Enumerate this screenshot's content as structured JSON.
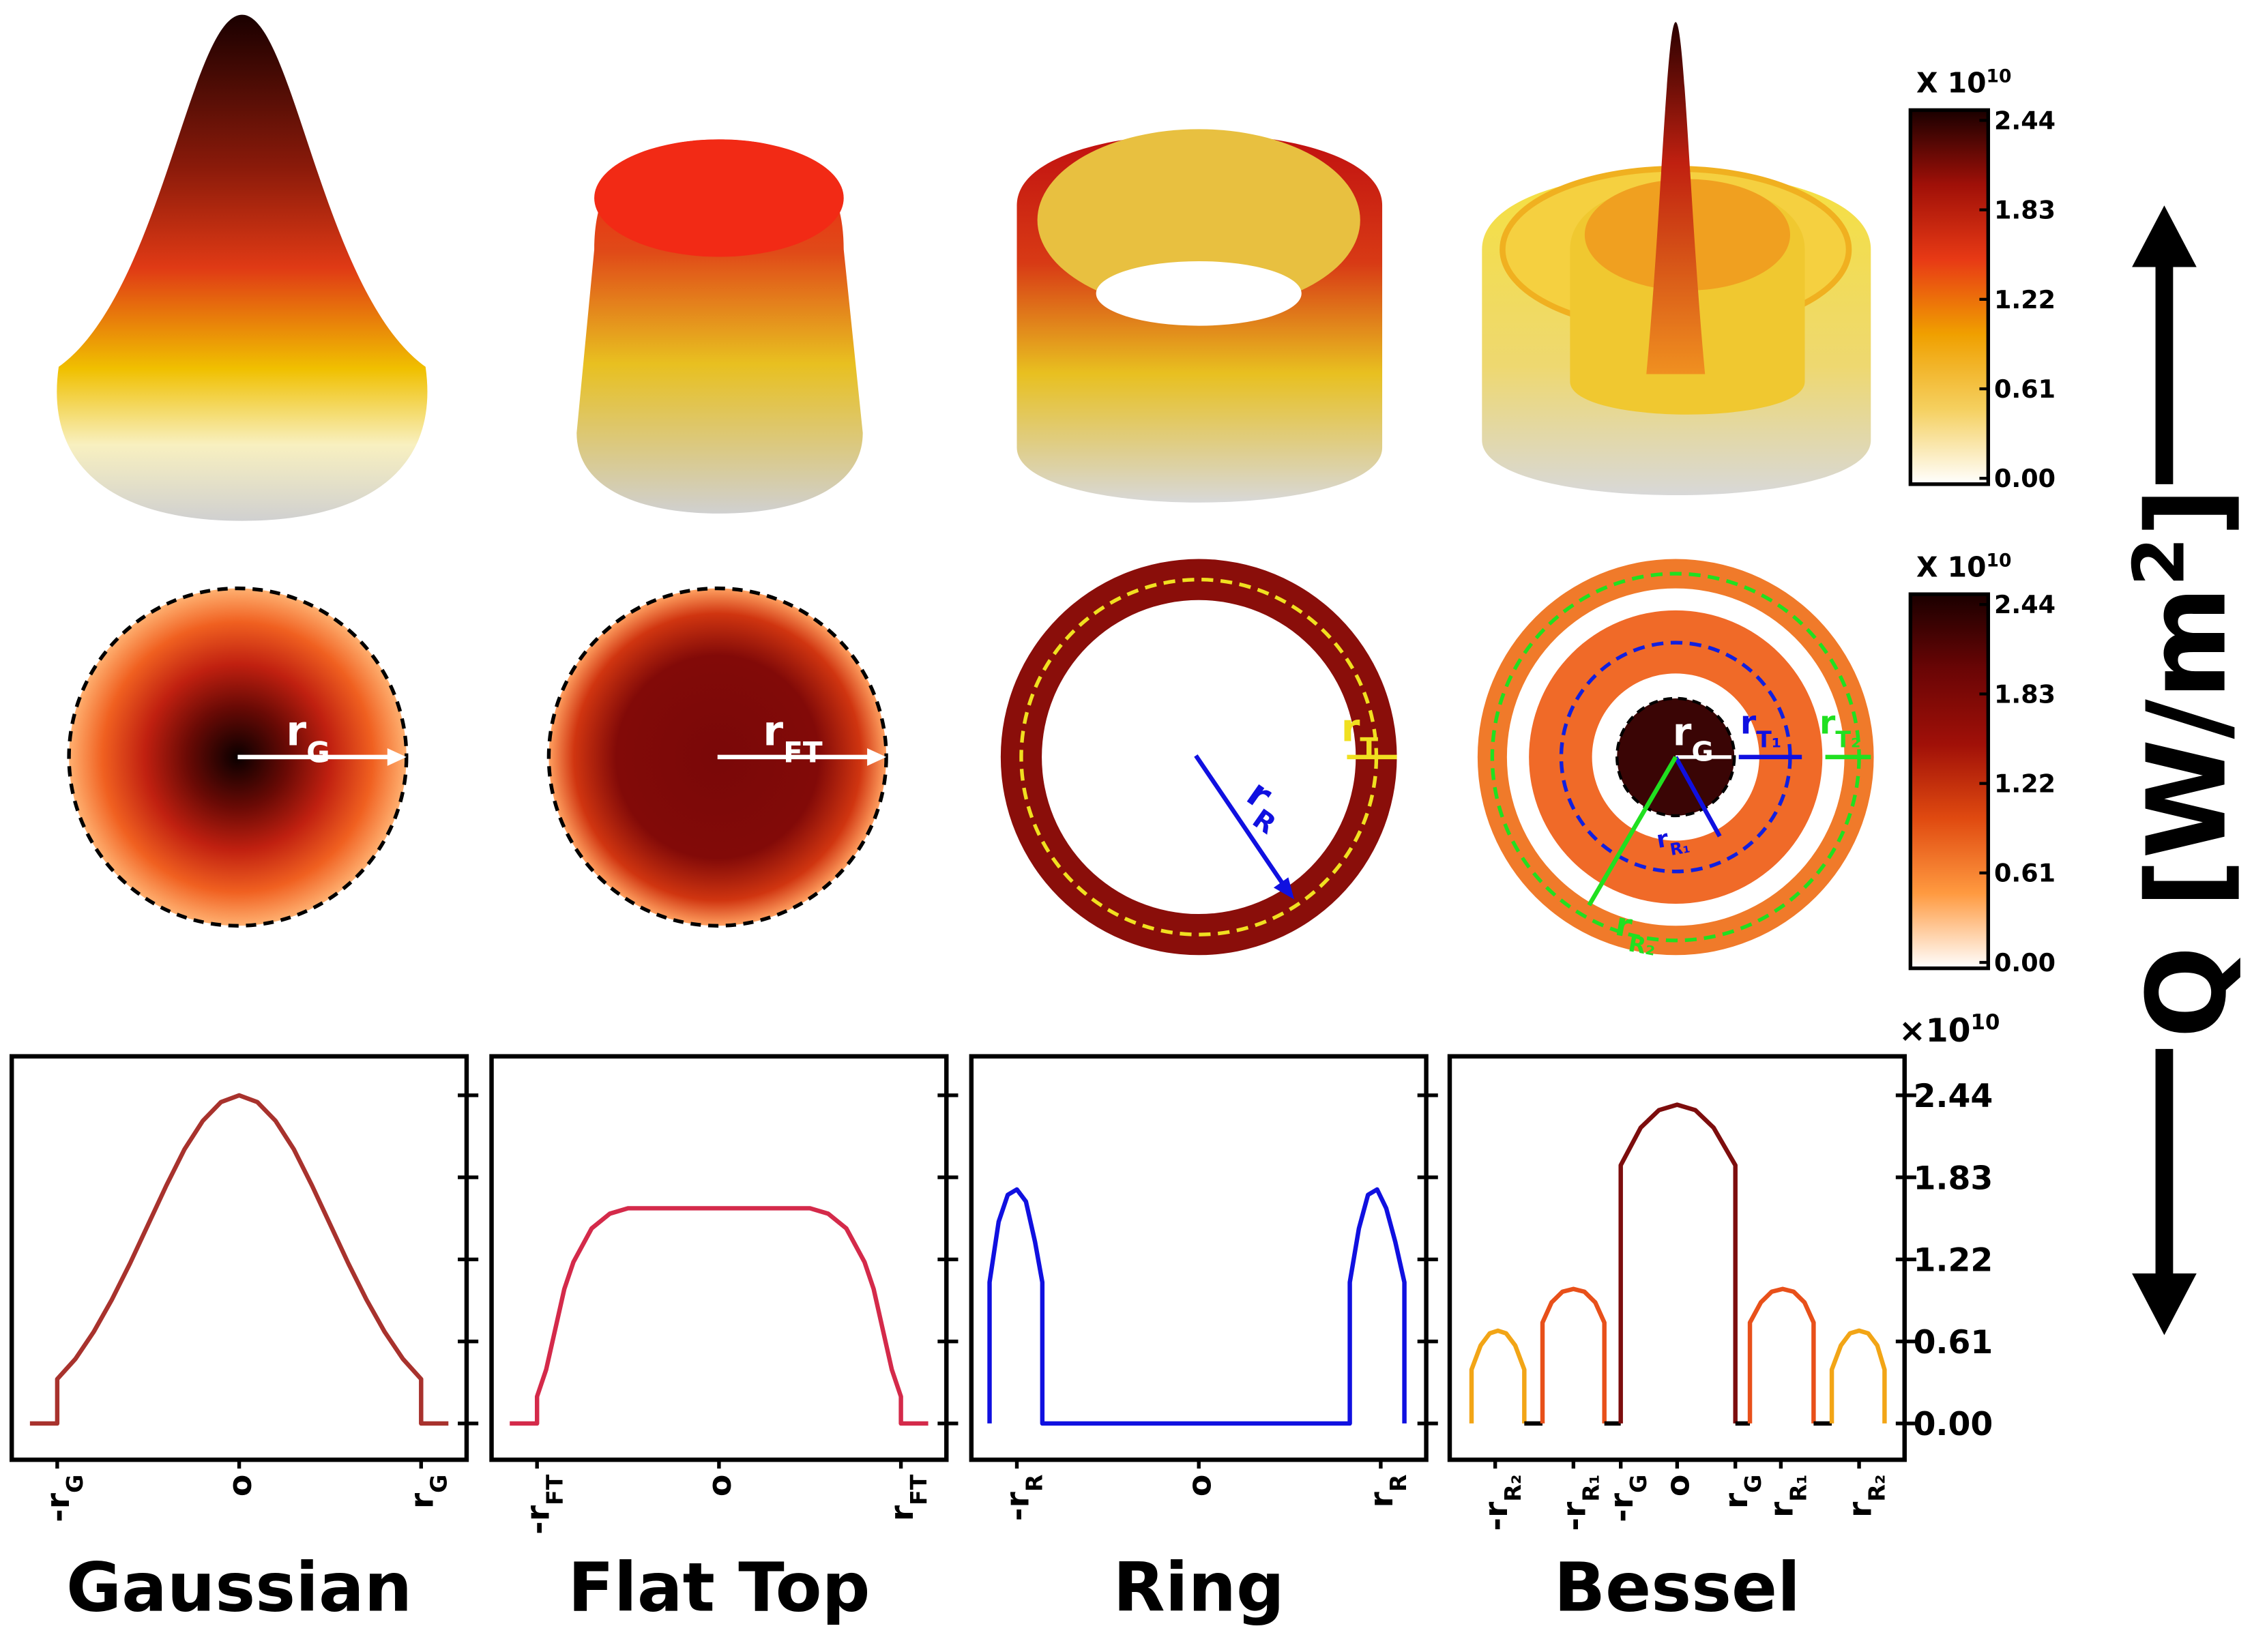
{
  "chart_data": [
    {
      "type": "line",
      "title": "Gaussian",
      "color": "#a8322d",
      "x": [
        -1.15,
        -1,
        -1,
        -0.9,
        -0.8,
        -0.7,
        -0.6,
        -0.5,
        -0.4,
        -0.3,
        -0.2,
        -0.1,
        0,
        0.1,
        0.2,
        0.3,
        0.4,
        0.5,
        0.6,
        0.7,
        0.8,
        0.9,
        1,
        1,
        1.15
      ],
      "values": [
        0,
        0,
        0.33,
        0.48,
        0.68,
        0.92,
        1.19,
        1.48,
        1.77,
        2.04,
        2.25,
        2.39,
        2.44,
        2.39,
        2.25,
        2.04,
        1.77,
        1.48,
        1.19,
        0.92,
        0.68,
        0.48,
        0.33,
        0,
        0
      ],
      "xlim": [
        -1.25,
        1.25
      ],
      "ylim": [
        -0.27,
        2.73
      ],
      "yticks": [
        0,
        0.61,
        1.22,
        1.83,
        2.44
      ],
      "xticks": [
        {
          "value": -1,
          "label": "-r",
          "sub": "G"
        },
        {
          "value": 0,
          "label": "o"
        },
        {
          "value": 1,
          "label": "r",
          "sub": "G"
        }
      ]
    },
    {
      "type": "line",
      "title": "Flat Top",
      "color": "#d42a4a",
      "x": [
        -1.15,
        -1,
        -1,
        -0.95,
        -0.9,
        -0.85,
        -0.8,
        -0.7,
        -0.6,
        -0.5,
        0,
        0.5,
        0.6,
        0.7,
        0.8,
        0.85,
        0.9,
        0.95,
        1,
        1,
        1.15
      ],
      "values": [
        0,
        0,
        0.2,
        0.4,
        0.7,
        1.0,
        1.2,
        1.45,
        1.56,
        1.6,
        1.6,
        1.6,
        1.56,
        1.45,
        1.2,
        1.0,
        0.7,
        0.4,
        0.2,
        0,
        0
      ],
      "xlim": [
        -1.25,
        1.25
      ],
      "ylim": [
        -0.27,
        2.73
      ],
      "yticks": [
        0,
        0.61,
        1.22,
        1.83,
        2.44
      ],
      "xticks": [
        {
          "value": -1,
          "label": "-r",
          "sub": "FT"
        },
        {
          "value": 0,
          "label": "o"
        },
        {
          "value": 1,
          "label": "r",
          "sub": "FT"
        }
      ]
    },
    {
      "type": "line",
      "title": "Ring",
      "color": "#1010e0",
      "x": [
        -1.15,
        -1.15,
        -1.1,
        -1.05,
        -1,
        -0.95,
        -0.9,
        -0.86,
        -0.86,
        0.83,
        0.83,
        0.88,
        0.93,
        0.98,
        1.03,
        1.08,
        1.13,
        1.13
      ],
      "values": [
        0,
        1.05,
        1.5,
        1.7,
        1.74,
        1.65,
        1.35,
        1.05,
        0,
        0,
        1.05,
        1.45,
        1.7,
        1.74,
        1.6,
        1.35,
        1.05,
        0
      ],
      "xlim": [
        -1.25,
        1.25
      ],
      "ylim": [
        -0.27,
        2.73
      ],
      "yticks": [
        0,
        0.61,
        1.22,
        1.83,
        2.44
      ],
      "xticks": [
        {
          "value": -1,
          "label": "-r",
          "sub": "R"
        },
        {
          "value": 0,
          "label": "o"
        },
        {
          "value": 1,
          "label": "r",
          "sub": "R"
        }
      ]
    },
    {
      "type": "line",
      "title": "Bessel",
      "series": [
        {
          "color": "#f2a516",
          "x": [
            -1.13,
            -1.13,
            -1.08,
            -1.03,
            -0.985,
            -0.94,
            -0.89,
            -0.84,
            -0.84
          ],
          "values": [
            0,
            0.4,
            0.58,
            0.67,
            0.69,
            0.67,
            0.58,
            0.4,
            0
          ]
        },
        {
          "color": "#000000",
          "x": [
            -0.84,
            -0.74
          ],
          "values": [
            0,
            0
          ]
        },
        {
          "color": "#e8501a",
          "x": [
            -0.74,
            -0.74,
            -0.69,
            -0.63,
            -0.57,
            -0.51,
            -0.45,
            -0.4,
            -0.4
          ],
          "values": [
            0,
            0.75,
            0.9,
            0.98,
            1.0,
            0.98,
            0.9,
            0.75,
            0
          ]
        },
        {
          "color": "#000000",
          "x": [
            -0.4,
            -0.31
          ],
          "values": [
            0,
            0
          ]
        },
        {
          "color": "#7d0d0d",
          "x": [
            -0.31,
            -0.31,
            -0.2,
            -0.1,
            0,
            0.1,
            0.2,
            0.32,
            0.32
          ],
          "values": [
            0,
            1.92,
            2.2,
            2.33,
            2.37,
            2.33,
            2.2,
            1.92,
            0
          ]
        },
        {
          "color": "#000000",
          "x": [
            0.32,
            0.4
          ],
          "values": [
            0,
            0
          ]
        },
        {
          "color": "#e8501a",
          "x": [
            0.4,
            0.4,
            0.46,
            0.52,
            0.58,
            0.64,
            0.7,
            0.75,
            0.75
          ],
          "values": [
            0,
            0.75,
            0.9,
            0.98,
            1.0,
            0.98,
            0.9,
            0.75,
            0
          ]
        },
        {
          "color": "#000000",
          "x": [
            0.75,
            0.85
          ],
          "values": [
            0,
            0
          ]
        },
        {
          "color": "#f2a516",
          "x": [
            0.85,
            0.85,
            0.9,
            0.95,
            1.0,
            1.05,
            1.1,
            1.14,
            1.14
          ],
          "values": [
            0,
            0.4,
            0.58,
            0.67,
            0.69,
            0.67,
            0.58,
            0.4,
            0
          ]
        }
      ],
      "xlim": [
        -1.25,
        1.25
      ],
      "ylim": [
        -0.27,
        2.73
      ],
      "yticks": [
        {
          "value": 0,
          "label": "0.00"
        },
        {
          "value": 0.61,
          "label": "0.61"
        },
        {
          "value": 1.22,
          "label": "1.22"
        },
        {
          "value": 1.83,
          "label": "1.83"
        },
        {
          "value": 2.44,
          "label": "2.44"
        }
      ],
      "y_multiplier": {
        "text": "×10",
        "sup": "10"
      },
      "xticks": [
        {
          "value": -1,
          "label": "-r",
          "sub": "R₂"
        },
        {
          "value": -0.57,
          "label": "-r",
          "sub": "R₁"
        },
        {
          "value": -0.31,
          "label": "-r",
          "sub": "G"
        },
        {
          "value": 0,
          "label": "o"
        },
        {
          "value": 0.32,
          "label": "r",
          "sub": "G"
        },
        {
          "value": 0.57,
          "label": "r",
          "sub": "R₁"
        },
        {
          "value": 1,
          "label": "r",
          "sub": "R₂"
        }
      ]
    }
  ],
  "colorbars": [
    {
      "multiplier": {
        "text": "X 10",
        "sup": "10"
      },
      "lim": [
        0,
        2.44
      ],
      "colors": [
        "#ffffff",
        "#f5d060",
        "#f0a000",
        "#e83a15",
        "#a01008",
        "#1a0000"
      ],
      "ticks": [
        {
          "value": 0,
          "label": "0.00"
        },
        {
          "value": 0.61,
          "label": "0.61"
        },
        {
          "value": 1.22,
          "label": "1.22"
        },
        {
          "value": 1.83,
          "label": "1.83"
        },
        {
          "value": 2.44,
          "label": "2.44"
        }
      ]
    },
    {
      "multiplier": {
        "text": "X 10",
        "sup": "10"
      },
      "lim": [
        0,
        2.44
      ],
      "colors": [
        "#ffffff",
        "#ff9a40",
        "#e04a10",
        "#a01008",
        "#6a0505",
        "#1a0000"
      ],
      "ticks": [
        {
          "value": 0,
          "label": "0.00"
        },
        {
          "value": 0.61,
          "label": "0.61"
        },
        {
          "value": 1.22,
          "label": "1.22"
        },
        {
          "value": 1.83,
          "label": "1.83"
        },
        {
          "value": 2.44,
          "label": "2.44"
        }
      ]
    }
  ],
  "maps": [
    {
      "annotations": [
        {
          "text": "r",
          "sub": "G"
        }
      ]
    },
    {
      "annotations": [
        {
          "text": "r",
          "sub": "FT"
        }
      ]
    },
    {
      "annotations": [
        {
          "text": "r",
          "sub": "T"
        },
        {
          "text": "r",
          "sub": "R"
        }
      ]
    },
    {
      "annotations": [
        {
          "text": "r",
          "sub": "G"
        },
        {
          "text": "r",
          "sub": "T₁"
        },
        {
          "text": "r",
          "sub": "T₂"
        },
        {
          "text": "r",
          "sub": "R₁"
        },
        {
          "text": "r",
          "sub": "R₂"
        }
      ]
    }
  ],
  "axis_label": {
    "text": "Q [W/m",
    "sup": "2",
    "end": "]"
  }
}
